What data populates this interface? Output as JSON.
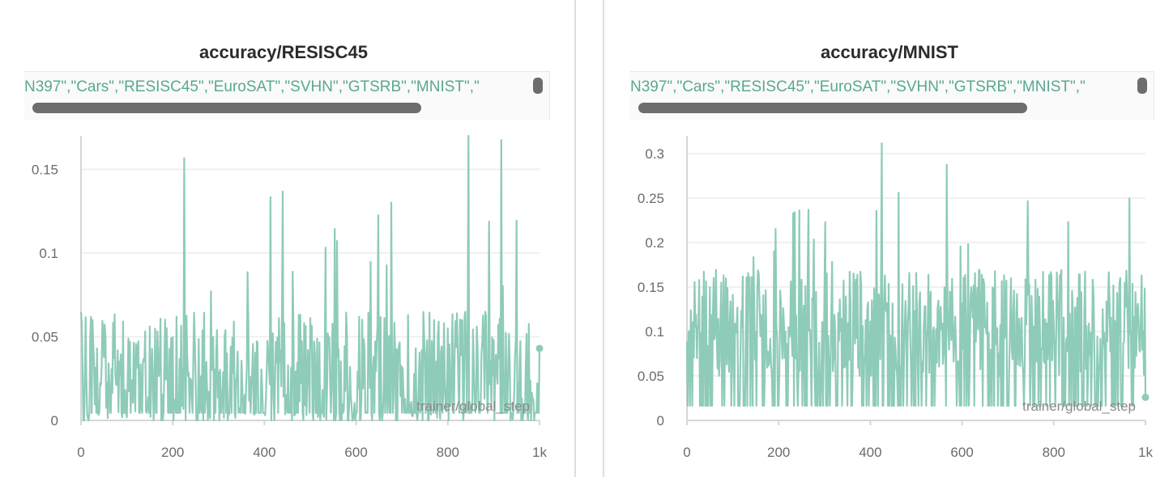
{
  "colors": {
    "series": "#8ecbb9",
    "grid": "#ececec",
    "axis": "#d6d6d6",
    "legend_text": "#59a892"
  },
  "chart_data": [
    {
      "type": "line",
      "title": "accuracy/RESISC45",
      "legend_text": "N397\",\"Cars\",\"RESISC45\",\"EuroSAT\",\"SVHN\",\"GTSRB\",\"MNIST\",\"",
      "xlabel": "trainer/global_step",
      "xlim": [
        0,
        1000
      ],
      "ylim": [
        0,
        0.17
      ],
      "yticks": [
        0,
        0.05,
        0.1,
        0.15
      ],
      "ytick_labels": [
        "0",
        "0.05",
        "0.1",
        "0.15"
      ],
      "xticks": [
        0,
        200,
        400,
        600,
        800,
        1000
      ],
      "xtick_labels": [
        "0",
        "200",
        "400",
        "600",
        "800",
        "1k"
      ],
      "grid": true,
      "series": [
        {
          "name": "",
          "last_value": 0.043,
          "mean_level": 0.03,
          "noise_level": 0.035
        }
      ]
    },
    {
      "type": "line",
      "title": "accuracy/MNIST",
      "legend_text": "N397\",\"Cars\",\"RESISC45\",\"EuroSAT\",\"SVHN\",\"GTSRB\",\"MNIST\",\"",
      "xlabel": "trainer/global_step",
      "xlim": [
        0,
        1000
      ],
      "ylim": [
        0,
        0.32
      ],
      "yticks": [
        0,
        0.05,
        0.1,
        0.15,
        0.2,
        0.25,
        0.3
      ],
      "ytick_labels": [
        "0",
        "0.05",
        "0.1",
        "0.15",
        "0.2",
        "0.25",
        "0.3"
      ],
      "xticks": [
        0,
        200,
        400,
        600,
        800,
        1000
      ],
      "xtick_labels": [
        "0",
        "200",
        "400",
        "600",
        "800",
        "1k"
      ],
      "grid": true,
      "series": [
        {
          "name": "",
          "last_value": 0.026,
          "mean_level": 0.11,
          "noise_level": 0.06
        }
      ]
    }
  ]
}
